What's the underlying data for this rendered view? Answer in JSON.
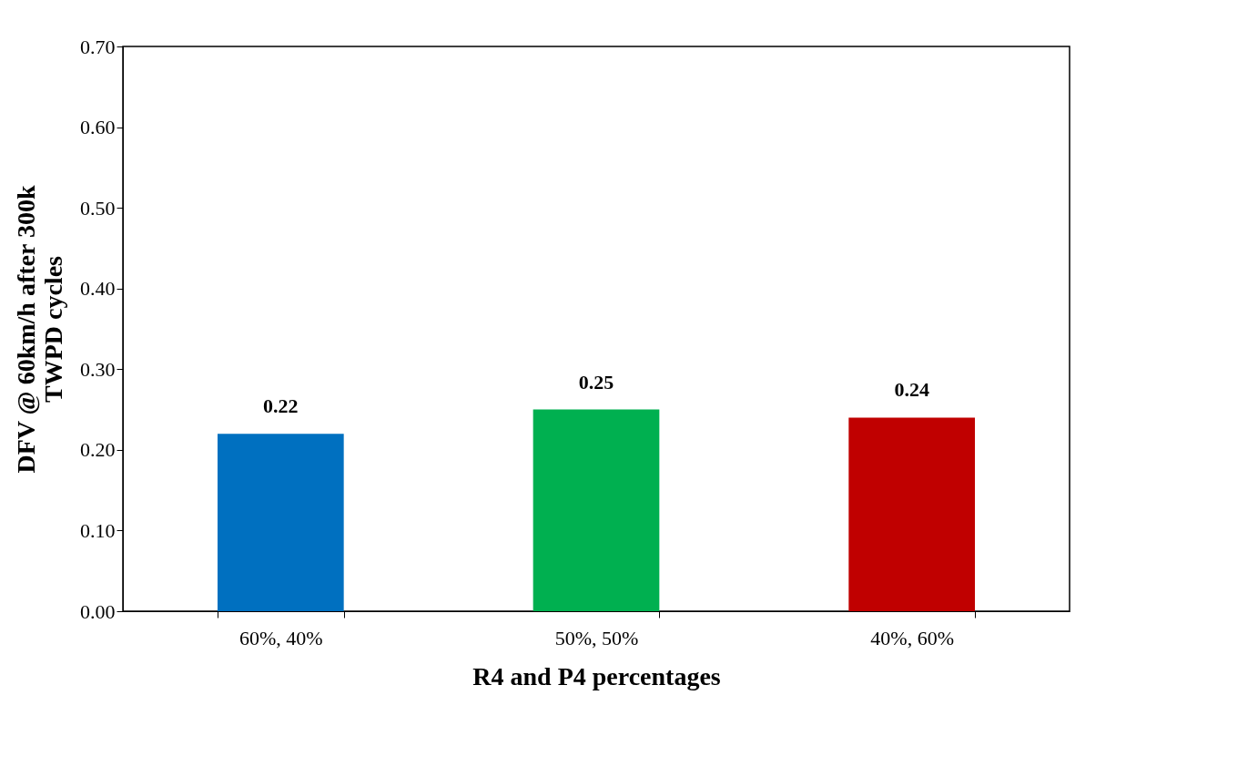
{
  "chart_data": {
    "type": "bar",
    "xlabel": "R4 and P4 percentages",
    "ylabel": "DFV @ 60km/h after 300k\nTWPD cycles",
    "categories": [
      "60%, 40%",
      "50%, 50%",
      "40%, 60%"
    ],
    "values": [
      0.22,
      0.25,
      0.24
    ],
    "colors": [
      "#0070c0",
      "#00b050",
      "#c00000"
    ],
    "ylim": [
      0,
      0.7
    ],
    "yticks": [
      {
        "value": 0,
        "label": "0.00"
      },
      {
        "value": 0.1,
        "label": "0.10"
      },
      {
        "value": 0.2,
        "label": "0.20"
      },
      {
        "value": 0.3,
        "label": "0.30"
      },
      {
        "value": 0.4,
        "label": "0.40"
      },
      {
        "value": 0.5,
        "label": "0.50"
      },
      {
        "value": 0.6,
        "label": "0.60"
      },
      {
        "value": 0.7,
        "label": "0.70"
      }
    ],
    "data_labels": true,
    "grid": false
  }
}
